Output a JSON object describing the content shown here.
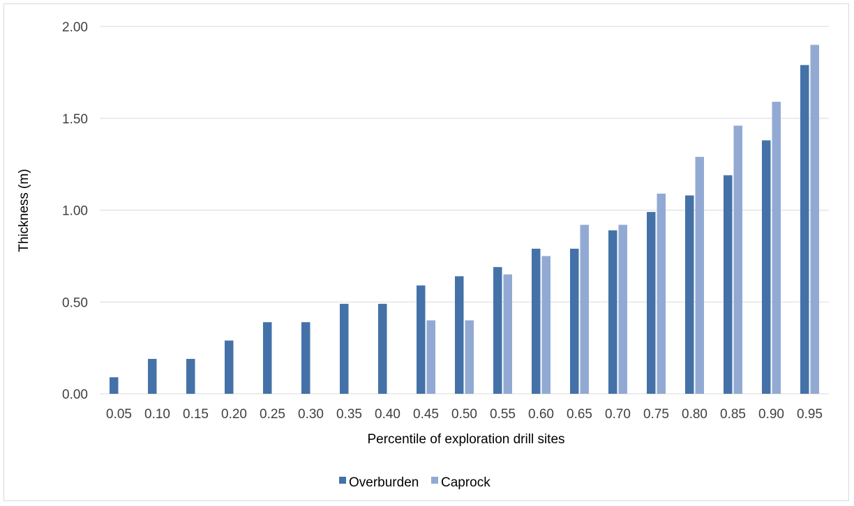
{
  "chart_data": {
    "type": "bar",
    "title": "",
    "xlabel": "Percentile of exploration drill sites",
    "ylabel": "Thickness (m)",
    "ylim": [
      0,
      2.0
    ],
    "yticks": [
      "0.00",
      "0.50",
      "1.00",
      "1.50",
      "2.00"
    ],
    "categories": [
      "0.05",
      "0.10",
      "0.15",
      "0.20",
      "0.25",
      "0.30",
      "0.35",
      "0.40",
      "0.45",
      "0.50",
      "0.55",
      "0.60",
      "0.65",
      "0.70",
      "0.75",
      "0.80",
      "0.85",
      "0.90",
      "0.95"
    ],
    "series": [
      {
        "name": "Overburden",
        "color": "#4472a8",
        "values": [
          0.09,
          0.19,
          0.19,
          0.29,
          0.39,
          0.39,
          0.49,
          0.49,
          0.59,
          0.64,
          0.69,
          0.79,
          0.79,
          0.89,
          0.99,
          1.08,
          1.19,
          1.38,
          1.79
        ]
      },
      {
        "name": "Caprock",
        "color": "#92aad3",
        "values": [
          0,
          0,
          0,
          0,
          0,
          0,
          0,
          0,
          0.4,
          0.4,
          0.65,
          0.75,
          0.92,
          0.92,
          1.09,
          1.29,
          1.46,
          1.59,
          1.9
        ]
      }
    ],
    "grid": true,
    "legend_position": "bottom"
  }
}
